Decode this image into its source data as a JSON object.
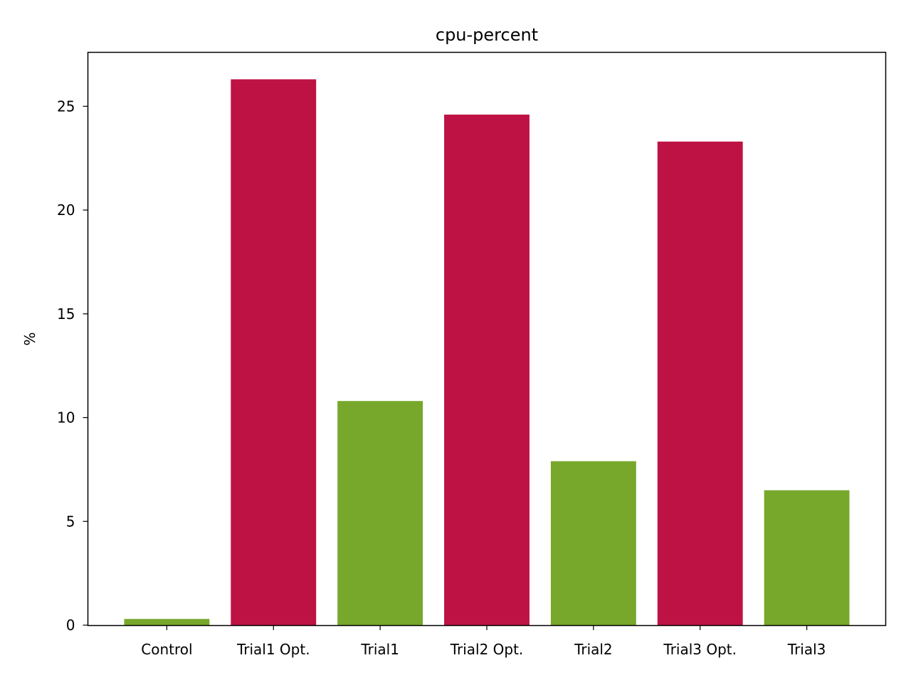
{
  "chart_data": {
    "type": "bar",
    "title": "cpu-percent",
    "xlabel": "",
    "ylabel": "%",
    "categories": [
      "Control",
      "Trial1 Opt.",
      "Trial1",
      "Trial2 Opt.",
      "Trial2",
      "Trial3 Opt.",
      "Trial3"
    ],
    "values": [
      0.3,
      26.3,
      10.8,
      24.6,
      7.9,
      23.3,
      6.5
    ],
    "bar_colors": [
      "#77a82b",
      "#be1244",
      "#77a82b",
      "#be1244",
      "#77a82b",
      "#be1244",
      "#77a82b"
    ],
    "ylim": [
      0,
      27.6
    ],
    "yticks": [
      0,
      5,
      10,
      15,
      20,
      25
    ],
    "grid": false,
    "legend": null
  }
}
